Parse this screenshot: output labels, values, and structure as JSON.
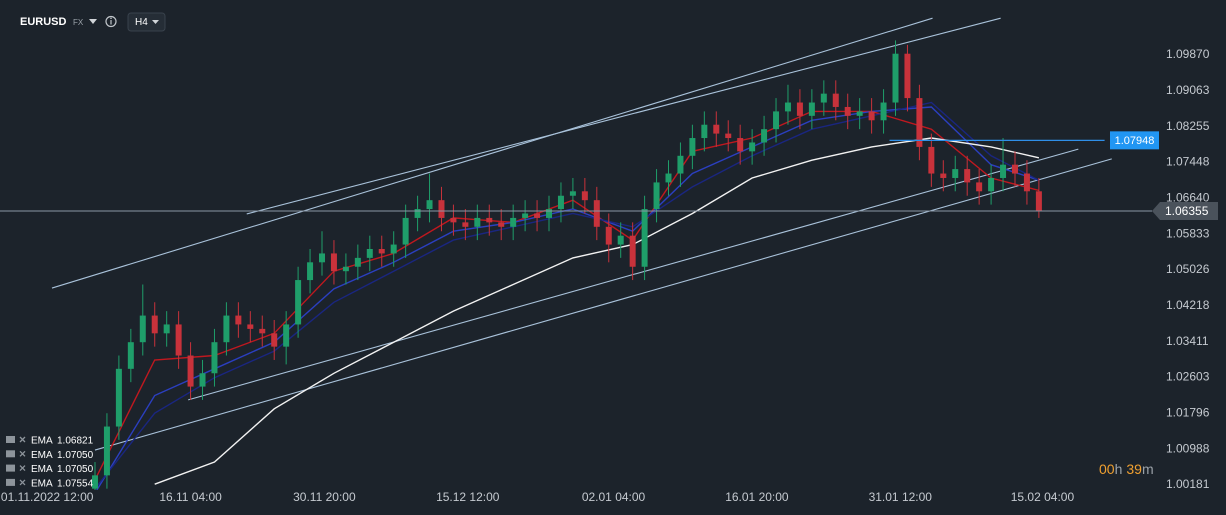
{
  "chart_data": {
    "type": "candlestick",
    "symbol": "EURUSD",
    "market": "FX",
    "timeframe": "H4",
    "xlim": [
      -7.95,
      88.3
    ],
    "ylim": [
      1.0007,
      1.1111
    ],
    "xticks": [
      {
        "value": -4,
        "label": "01.11.2022 12:00"
      },
      {
        "value": 8,
        "label": "16.11 04:00"
      },
      {
        "value": 19.2,
        "label": "30.11 20:00"
      },
      {
        "value": 31.2,
        "label": "15.12 12:00"
      },
      {
        "value": 43.4,
        "label": "02.01 04:00"
      },
      {
        "value": 55.4,
        "label": "16.01 20:00"
      },
      {
        "value": 67.4,
        "label": "31.01 12:00"
      },
      {
        "value": 79.3,
        "label": "15.02 04:00"
      }
    ],
    "yticks": [
      {
        "value": 1.0987,
        "label": "1.09870"
      },
      {
        "value": 1.09063,
        "label": "1.09063"
      },
      {
        "value": 1.08255,
        "label": "1.08255"
      },
      {
        "value": 1.07448,
        "label": "1.07448"
      },
      {
        "value": 1.0664,
        "label": "1.06640"
      },
      {
        "value": 1.05833,
        "label": "1.05833"
      },
      {
        "value": 1.05026,
        "label": "1.05026"
      },
      {
        "value": 1.04218,
        "label": "1.04218"
      },
      {
        "value": 1.03411,
        "label": "1.03411"
      },
      {
        "value": 1.02603,
        "label": "1.02603"
      },
      {
        "value": 1.01796,
        "label": "1.01796"
      },
      {
        "value": 1.00988,
        "label": "1.00988"
      },
      {
        "value": 1.00181,
        "label": "1.00181"
      }
    ],
    "up_color": "#1f9e6a",
    "down_color": "#c8323b",
    "candles": {
      "x": [
        0,
        1,
        2,
        3,
        4,
        5,
        6,
        7,
        8,
        9,
        10,
        11,
        12,
        13,
        14,
        15,
        16,
        17,
        18,
        19,
        20,
        21,
        22,
        23,
        24,
        25,
        26,
        27,
        28,
        29,
        30,
        31,
        32,
        33,
        34,
        35,
        36,
        37,
        38,
        39,
        40,
        41,
        42,
        43,
        44,
        45,
        46,
        47,
        48,
        49,
        50,
        51,
        52,
        53,
        54,
        55,
        56,
        57,
        58,
        59,
        60,
        61,
        62,
        63,
        64,
        65,
        66,
        67,
        68,
        69,
        70,
        71,
        72,
        73,
        74,
        75,
        76,
        77,
        78,
        79
      ],
      "open": [
        1.001,
        1.004,
        1.015,
        1.028,
        1.034,
        1.04,
        1.036,
        1.038,
        1.031,
        1.024,
        1.027,
        1.034,
        1.04,
        1.038,
        1.037,
        1.036,
        1.033,
        1.038,
        1.048,
        1.052,
        1.054,
        1.05,
        1.051,
        1.053,
        1.055,
        1.054,
        1.056,
        1.062,
        1.064,
        1.066,
        1.062,
        1.061,
        1.06,
        1.062,
        1.061,
        1.06,
        1.062,
        1.063,
        1.062,
        1.064,
        1.067,
        1.068,
        1.066,
        1.06,
        1.056,
        1.058,
        1.051,
        1.064,
        1.07,
        1.072,
        1.076,
        1.08,
        1.083,
        1.081,
        1.08,
        1.077,
        1.079,
        1.082,
        1.086,
        1.088,
        1.085,
        1.088,
        1.09,
        1.087,
        1.085,
        1.086,
        1.084,
        1.088,
        1.099,
        1.089,
        1.078,
        1.072,
        1.071,
        1.073,
        1.07,
        1.068,
        1.071,
        1.074,
        1.072,
        1.068
      ],
      "high": [
        1.007,
        1.018,
        1.031,
        1.037,
        1.047,
        1.043,
        1.041,
        1.041,
        1.034,
        1.03,
        1.037,
        1.043,
        1.043,
        1.041,
        1.04,
        1.039,
        1.041,
        1.051,
        1.055,
        1.059,
        1.057,
        1.054,
        1.056,
        1.058,
        1.058,
        1.059,
        1.065,
        1.067,
        1.072,
        1.069,
        1.065,
        1.064,
        1.065,
        1.065,
        1.064,
        1.065,
        1.066,
        1.066,
        1.067,
        1.07,
        1.071,
        1.071,
        1.069,
        1.063,
        1.061,
        1.061,
        1.067,
        1.073,
        1.075,
        1.079,
        1.083,
        1.086,
        1.086,
        1.084,
        1.083,
        1.082,
        1.085,
        1.089,
        1.092,
        1.091,
        1.091,
        1.093,
        1.093,
        1.09,
        1.089,
        1.089,
        1.091,
        1.102,
        1.101,
        1.092,
        1.081,
        1.075,
        1.076,
        1.076,
        1.073,
        1.074,
        1.08,
        1.077,
        1.075,
        1.071
      ],
      "low": [
        0.998,
        1.001,
        1.012,
        1.025,
        1.031,
        1.033,
        1.033,
        1.028,
        1.021,
        1.021,
        1.024,
        1.031,
        1.035,
        1.034,
        1.033,
        1.03,
        1.029,
        1.035,
        1.045,
        1.049,
        1.047,
        1.047,
        1.048,
        1.05,
        1.051,
        1.051,
        1.053,
        1.059,
        1.061,
        1.059,
        1.058,
        1.057,
        1.057,
        1.058,
        1.057,
        1.057,
        1.059,
        1.059,
        1.059,
        1.061,
        1.064,
        1.063,
        1.057,
        1.052,
        1.053,
        1.048,
        1.048,
        1.061,
        1.067,
        1.069,
        1.073,
        1.077,
        1.078,
        1.077,
        1.074,
        1.074,
        1.076,
        1.079,
        1.083,
        1.082,
        1.082,
        1.085,
        1.084,
        1.082,
        1.082,
        1.081,
        1.081,
        1.085,
        1.086,
        1.075,
        1.069,
        1.068,
        1.068,
        1.067,
        1.065,
        1.065,
        1.068,
        1.069,
        1.065,
        1.062
      ],
      "close": [
        1.004,
        1.015,
        1.028,
        1.034,
        1.04,
        1.036,
        1.038,
        1.031,
        1.024,
        1.027,
        1.034,
        1.04,
        1.038,
        1.037,
        1.036,
        1.033,
        1.038,
        1.048,
        1.052,
        1.054,
        1.05,
        1.051,
        1.053,
        1.055,
        1.054,
        1.056,
        1.062,
        1.064,
        1.066,
        1.062,
        1.061,
        1.06,
        1.062,
        1.061,
        1.06,
        1.062,
        1.063,
        1.062,
        1.064,
        1.067,
        1.068,
        1.066,
        1.06,
        1.056,
        1.058,
        1.051,
        1.064,
        1.07,
        1.072,
        1.076,
        1.08,
        1.083,
        1.081,
        1.08,
        1.077,
        1.079,
        1.082,
        1.086,
        1.088,
        1.085,
        1.088,
        1.09,
        1.087,
        1.085,
        1.086,
        1.084,
        1.088,
        1.099,
        1.089,
        1.078,
        1.072,
        1.071,
        1.073,
        1.07,
        1.068,
        1.071,
        1.074,
        1.072,
        1.068,
        1.06355
      ]
    },
    "current_price": 1.06355,
    "level": {
      "value": 1.07948,
      "x": [
        66.5,
        84.5
      ]
    },
    "series": [
      {
        "name": "EMA",
        "color": "#c0181f",
        "current": 1.06821,
        "x": [
          0,
          5,
          10,
          15,
          20,
          25,
          30,
          35,
          40,
          45,
          50,
          55,
          60,
          65,
          70,
          75,
          79
        ],
        "values": [
          1.003,
          1.03,
          1.031,
          1.036,
          1.05,
          1.054,
          1.062,
          1.061,
          1.066,
          1.057,
          1.077,
          1.08,
          1.086,
          1.086,
          1.082,
          1.071,
          1.06821
        ]
      },
      {
        "name": "EMA",
        "color": "#2b3fc0",
        "current": {
          "value": 1.0705,
          "label": "1.07050"
        },
        "x": [
          0,
          5,
          10,
          15,
          20,
          25,
          30,
          35,
          40,
          45,
          50,
          55,
          60,
          65,
          70,
          75,
          79
        ],
        "values": [
          1.0,
          1.022,
          1.028,
          1.034,
          1.046,
          1.052,
          1.059,
          1.061,
          1.064,
          1.059,
          1.072,
          1.078,
          1.084,
          1.086,
          1.087,
          1.074,
          1.0705
        ]
      },
      {
        "name": "EMA",
        "color": "#1a2680",
        "current": {
          "value": 1.0705,
          "label": "1.07050"
        },
        "x": [
          0,
          5,
          10,
          15,
          20,
          25,
          30,
          35,
          40,
          45,
          50,
          55,
          60,
          65,
          70,
          75,
          79
        ],
        "values": [
          1.001,
          1.018,
          1.026,
          1.032,
          1.043,
          1.05,
          1.057,
          1.06,
          1.063,
          1.06,
          1.069,
          1.076,
          1.082,
          1.085,
          1.088,
          1.076,
          1.0705
        ]
      },
      {
        "name": "EMA",
        "color": "#f2f2f2",
        "current": 1.07554,
        "x": [
          5,
          10,
          15,
          20,
          25,
          30,
          35,
          40,
          45,
          50,
          55,
          60,
          65,
          70,
          75,
          79
        ],
        "values": [
          1.002,
          1.007,
          1.019,
          1.027,
          1.034,
          1.041,
          1.047,
          1.053,
          1.056,
          1.063,
          1.071,
          1.075,
          1.078,
          1.08,
          1.078,
          1.07554
        ]
      }
    ],
    "trendlines": [
      {
        "x": [
          -3.6,
          70.1
        ],
        "y": [
          1.0462,
          1.107
        ]
      },
      {
        "x": [
          12.7,
          75.8
        ],
        "y": [
          1.0629,
          1.107
        ]
      },
      {
        "x": [
          7.8,
          82.3
        ],
        "y": [
          1.021,
          1.0775
        ]
      },
      {
        "x": [
          0,
          85.1
        ],
        "y": [
          1.0097,
          1.0753
        ]
      }
    ],
    "timer": {
      "hours": "00",
      "hours_unit": "h",
      "minutes": "39",
      "minutes_unit": "m"
    }
  }
}
